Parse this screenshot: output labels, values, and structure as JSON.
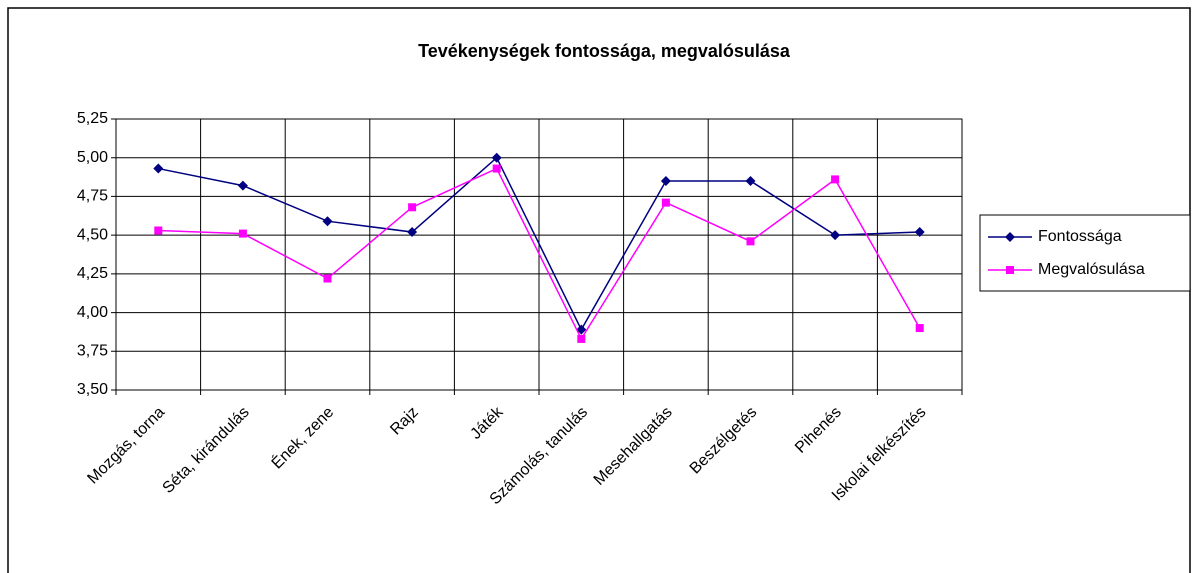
{
  "chart_data": {
    "type": "line",
    "title": "Tevékenységek fontossága, megvalósulása",
    "categories": [
      "Mozgás, torna",
      "Séta, kirándulás",
      "Ének, zene",
      "Rajz",
      "Játék",
      "Számolás, tanulás",
      "Mesehallgatás",
      "Beszélgetés",
      "Pihenés",
      "Iskolai felkészítés"
    ],
    "series": [
      {
        "name": "Fontossága",
        "color": "#000080",
        "marker": "diamond",
        "values": [
          4.93,
          4.82,
          4.59,
          4.52,
          5.0,
          3.89,
          4.85,
          4.85,
          4.5,
          4.52
        ]
      },
      {
        "name": "Megvalósulása",
        "color": "#ff00ff",
        "marker": "square",
        "values": [
          4.53,
          4.51,
          4.22,
          4.68,
          4.93,
          3.83,
          4.71,
          4.46,
          4.86,
          3.9
        ]
      }
    ],
    "ylim": [
      3.5,
      5.25
    ],
    "yticks": [
      {
        "value": 3.5,
        "label": "3,50"
      },
      {
        "value": 3.75,
        "label": "3,75"
      },
      {
        "value": 4,
        "label": "4,00"
      },
      {
        "value": 4.25,
        "label": "4,25"
      },
      {
        "value": 4.5,
        "label": "4,50"
      },
      {
        "value": 4.75,
        "label": "4,75"
      },
      {
        "value": 5,
        "label": "5,00"
      },
      {
        "value": 5.25,
        "label": "5,25"
      }
    ],
    "grid": true,
    "legend": "right"
  }
}
